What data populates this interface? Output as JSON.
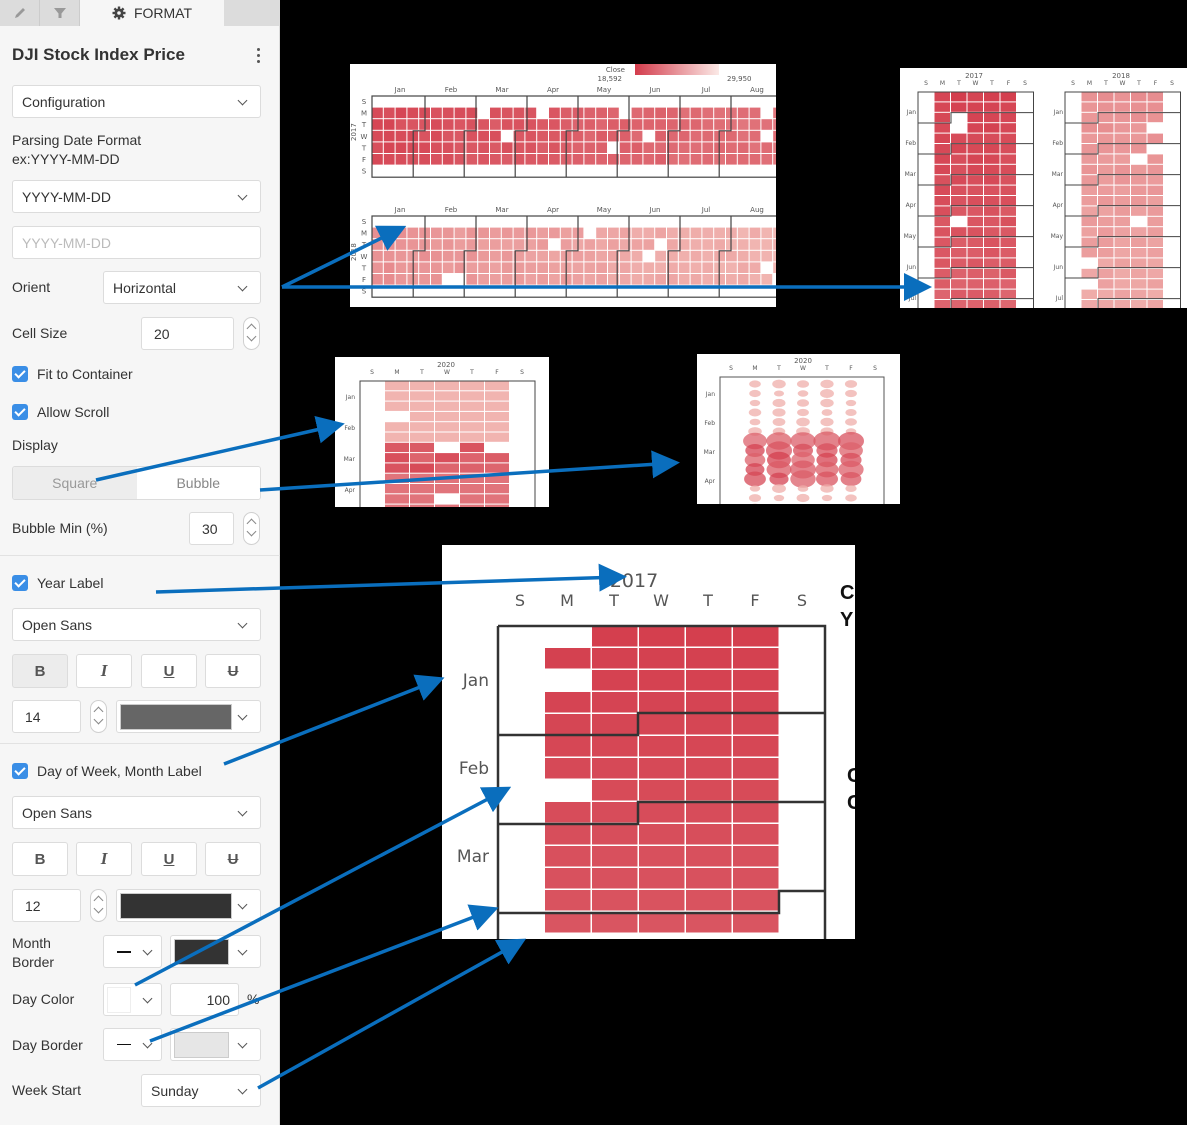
{
  "tabs": [
    {
      "name": "edit",
      "icon": "pencil-icon"
    },
    {
      "name": "filter",
      "icon": "filter-icon"
    },
    {
      "name": "format",
      "icon": "gear-icon",
      "label": "FORMAT",
      "active": true
    }
  ],
  "panel": {
    "title": "DJI Stock Index Price",
    "section_select": "Configuration",
    "parsing_label": "Parsing Date Format",
    "parsing_example": "ex:YYYY-MM-DD",
    "parsing_select": "YYYY-MM-DD",
    "parsing_input_placeholder": "YYYY-MM-DD",
    "orient_label": "Orient",
    "orient_value": "Horizontal",
    "cell_size_label": "Cell Size",
    "cell_size_value": "20",
    "fit_container_label": "Fit to Container",
    "fit_container_checked": true,
    "allow_scroll_label": "Allow Scroll",
    "allow_scroll_checked": true,
    "display_label": "Display",
    "display_options": [
      "Square",
      "Bubble"
    ],
    "display_selected": "Square",
    "bubble_min_label": "Bubble Min (%)",
    "bubble_min_value": "30",
    "year_label": {
      "label": "Year Label",
      "checked": true,
      "font": "Open Sans",
      "bold": true,
      "italic": false,
      "underline": false,
      "strike": false,
      "size": "14",
      "color": "#666666"
    },
    "dow_label": {
      "label": "Day of Week, Month Label",
      "checked": true,
      "font": "Open Sans",
      "bold": false,
      "italic": false,
      "underline": false,
      "strike": false,
      "size": "12",
      "color": "#333333"
    },
    "format_buttons": {
      "bold": "B",
      "italic": "I",
      "underline": "U",
      "strike": "U"
    },
    "month_border_label_1": "Month",
    "month_border_label_2": "Border",
    "month_border_color": "#333333",
    "day_color_label": "Day Color",
    "day_color_value": "#ffffff",
    "day_color_opacity": "100",
    "percent_sign": "%",
    "day_border_label": "Day Border",
    "day_border_color": "#e6e6e6",
    "week_start_label": "Week Start",
    "week_start_value": "Sunday"
  },
  "charts": {
    "horizontal": {
      "legend_title": "Close",
      "legend_min": "18,592",
      "legend_max": "29,950",
      "months": [
        "Jan",
        "Feb",
        "Mar",
        "Apr",
        "May",
        "Jun",
        "Jul",
        "Aug"
      ],
      "days": [
        "S",
        "M",
        "T",
        "W",
        "T",
        "F",
        "S"
      ],
      "years": [
        "2017",
        "2018"
      ]
    },
    "vertical": {
      "years": [
        "2017",
        "2018"
      ],
      "days": [
        "S",
        "M",
        "T",
        "W",
        "T",
        "F",
        "S"
      ],
      "months": [
        "Jan",
        "Feb",
        "Mar",
        "Apr",
        "May",
        "Jun",
        "Jul"
      ]
    },
    "square_2020": {
      "year": "2020",
      "days": [
        "S",
        "M",
        "T",
        "W",
        "T",
        "F",
        "S"
      ],
      "months": [
        "Jan",
        "Feb",
        "Mar",
        "Apr"
      ]
    },
    "bubble_2020": {
      "year": "2020",
      "days": [
        "S",
        "M",
        "T",
        "W",
        "T",
        "F",
        "S"
      ],
      "months": [
        "Jan",
        "Feb",
        "Mar",
        "Apr"
      ]
    },
    "zoomed_2017": {
      "year": "2017",
      "days": [
        "S",
        "M",
        "T",
        "W",
        "T",
        "F",
        "S"
      ],
      "months": [
        "Jan",
        "Feb",
        "Mar"
      ]
    }
  },
  "side_text": {
    "a": "C",
    "b": "Y",
    "c": "C",
    "d": "C"
  },
  "colors": {
    "accent_blue": "#0a6ebd",
    "checkbox_blue": "#3a8ee6",
    "heat_dark": "#d33c4c",
    "heat_light": "#f6c9c2"
  }
}
